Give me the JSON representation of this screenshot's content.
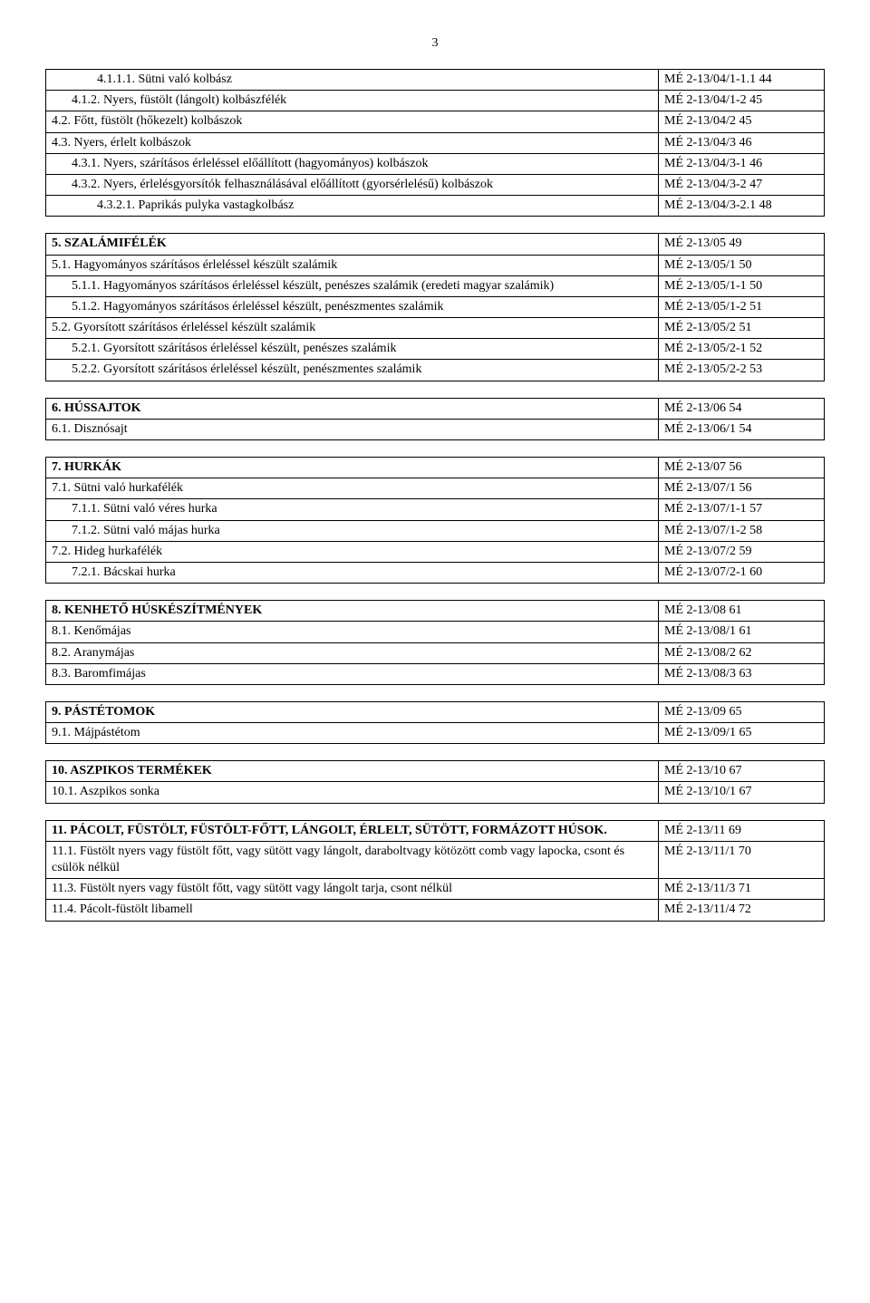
{
  "pageNumber": "3",
  "tables": [
    {
      "rows": [
        {
          "indent": 2,
          "bold": false,
          "label": "4.1.1.1. Sütni való kolbász",
          "code": "MÉ 2-13/04/1-1.1 44"
        },
        {
          "indent": 1,
          "bold": false,
          "label": "4.1.2. Nyers, füstölt (lángolt) kolbászfélék",
          "code": "MÉ 2-13/04/1-2 45"
        },
        {
          "indent": 0,
          "bold": false,
          "label": "4.2. Főtt, füstölt (hőkezelt) kolbászok",
          "code": "MÉ 2-13/04/2 45"
        },
        {
          "indent": 0,
          "bold": false,
          "label": "4.3. Nyers, érlelt kolbászok",
          "code": "MÉ 2-13/04/3 46"
        },
        {
          "indent": 1,
          "bold": false,
          "label": "4.3.1. Nyers, szárításos érleléssel előállított (hagyományos) kolbászok",
          "code": "MÉ 2-13/04/3-1 46"
        },
        {
          "indent": 1,
          "bold": false,
          "label": "4.3.2. Nyers, érlelésgyorsítók felhasználásával előállított (gyorsérlelésű) kolbászok",
          "code": "MÉ 2-13/04/3-2 47"
        },
        {
          "indent": 2,
          "bold": false,
          "label": "4.3.2.1. Paprikás pulyka vastagkolbász",
          "code": "MÉ 2-13/04/3-2.1 48"
        }
      ]
    },
    {
      "rows": [
        {
          "indent": 0,
          "bold": true,
          "label": "5. SZALÁMIFÉLÉK",
          "code": "MÉ 2-13/05 49"
        },
        {
          "indent": 0,
          "bold": false,
          "label": "5.1. Hagyományos szárításos érleléssel készült szalámik",
          "code": "MÉ 2-13/05/1 50"
        },
        {
          "indent": 1,
          "bold": false,
          "label": "5.1.1. Hagyományos szárításos érleléssel készült, penészes szalámik (eredeti magyar szalámik)",
          "code": " MÉ 2-13/05/1-1 50"
        },
        {
          "indent": 1,
          "bold": false,
          "label": "5.1.2. Hagyományos szárításos érleléssel készült, penészmentes szalámik",
          "code": "MÉ 2-13/05/1-2 51"
        },
        {
          "indent": 0,
          "bold": false,
          "label": "5.2. Gyorsított szárításos érleléssel készült szalámik",
          "code": "MÉ 2-13/05/2 51"
        },
        {
          "indent": 1,
          "bold": false,
          "label": "5.2.1. Gyorsított szárításos érleléssel készült, penészes szalámik",
          "code": "MÉ 2-13/05/2-1 52"
        },
        {
          "indent": 1,
          "bold": false,
          "label": "5.2.2. Gyorsított szárításos érleléssel készült, penészmentes szalámik",
          "code": "MÉ 2-13/05/2-2 53"
        }
      ]
    },
    {
      "rows": [
        {
          "indent": 0,
          "bold": true,
          "label": "6. HÚSSAJTOK",
          "code": "MÉ 2-13/06 54"
        },
        {
          "indent": 0,
          "bold": false,
          "label": "6.1. Disznósajt",
          "code": "MÉ 2-13/06/1 54"
        }
      ]
    },
    {
      "rows": [
        {
          "indent": 0,
          "bold": true,
          "label": "7. HURKÁK",
          "code": "MÉ 2-13/07 56"
        },
        {
          "indent": 0,
          "bold": false,
          "label": "7.1. Sütni való hurkafélék",
          "code": "MÉ 2-13/07/1 56"
        },
        {
          "indent": 1,
          "bold": false,
          "label": "7.1.1. Sütni való véres hurka",
          "code": "MÉ 2-13/07/1-1 57"
        },
        {
          "indent": 1,
          "bold": false,
          "label": "7.1.2. Sütni való májas hurka",
          "code": "MÉ 2-13/07/1-2 58"
        },
        {
          "indent": 0,
          "bold": false,
          "label": "7.2. Hideg hurkafélék",
          "code": "MÉ 2-13/07/2 59"
        },
        {
          "indent": 1,
          "bold": false,
          "label": "7.2.1. Bácskai hurka",
          "code": "MÉ 2-13/07/2-1 60"
        }
      ]
    },
    {
      "rows": [
        {
          "indent": 0,
          "bold": true,
          "label": "8. KENHETŐ HÚSKÉSZÍTMÉNYEK",
          "code": "MÉ 2-13/08 61"
        },
        {
          "indent": 0,
          "bold": false,
          "label": "8.1. Kenőmájas",
          "code": "MÉ 2-13/08/1 61"
        },
        {
          "indent": 0,
          "bold": false,
          "label": "8.2. Aranymájas",
          "code": "MÉ 2-13/08/2 62"
        },
        {
          "indent": 0,
          "bold": false,
          "label": "8.3. Baromfimájas",
          "code": "MÉ 2-13/08/3 63"
        }
      ]
    },
    {
      "rows": [
        {
          "indent": 0,
          "bold": true,
          "label": "9. PÁSTÉTOMOK",
          "code": "MÉ 2-13/09 65"
        },
        {
          "indent": 0,
          "bold": false,
          "label": "9.1. Májpástétom",
          "code": "MÉ 2-13/09/1 65"
        }
      ]
    },
    {
      "rows": [
        {
          "indent": 0,
          "bold": true,
          "label": "10. ASZPIKOS TERMÉKEK",
          "code": "MÉ 2-13/10 67"
        },
        {
          "indent": 0,
          "bold": false,
          "label": "10.1. Aszpikos sonka",
          "code": "MÉ 2-13/10/1 67"
        }
      ]
    },
    {
      "rows": [
        {
          "indent": 0,
          "bold": true,
          "label": "11. PÁCOLT, FÜSTÖLT, FÜSTÖLT-FŐTT, LÁNGOLT, ÉRLELT, SÜTÖTT, FORMÁZOTT HÚSOK.",
          "code": "MÉ 2-13/11 69"
        },
        {
          "indent": 0,
          "bold": false,
          "label": "11.1. Füstölt nyers vagy füstölt főtt, vagy sütött vagy lángolt, daraboltvagy kötözött comb vagy lapocka, csont és csülök nélkül",
          "code": "MÉ 2-13/11/1 70"
        },
        {
          "indent": 0,
          "bold": false,
          "label": "11.3. Füstölt nyers vagy füstölt főtt, vagy sütött vagy lángolt tarja, csont nélkül",
          "code": "MÉ 2-13/11/3 71"
        },
        {
          "indent": 0,
          "bold": false,
          "label": "11.4. Pácolt-füstölt libamell",
          "code": "MÉ 2-13/11/4 72"
        }
      ]
    }
  ]
}
